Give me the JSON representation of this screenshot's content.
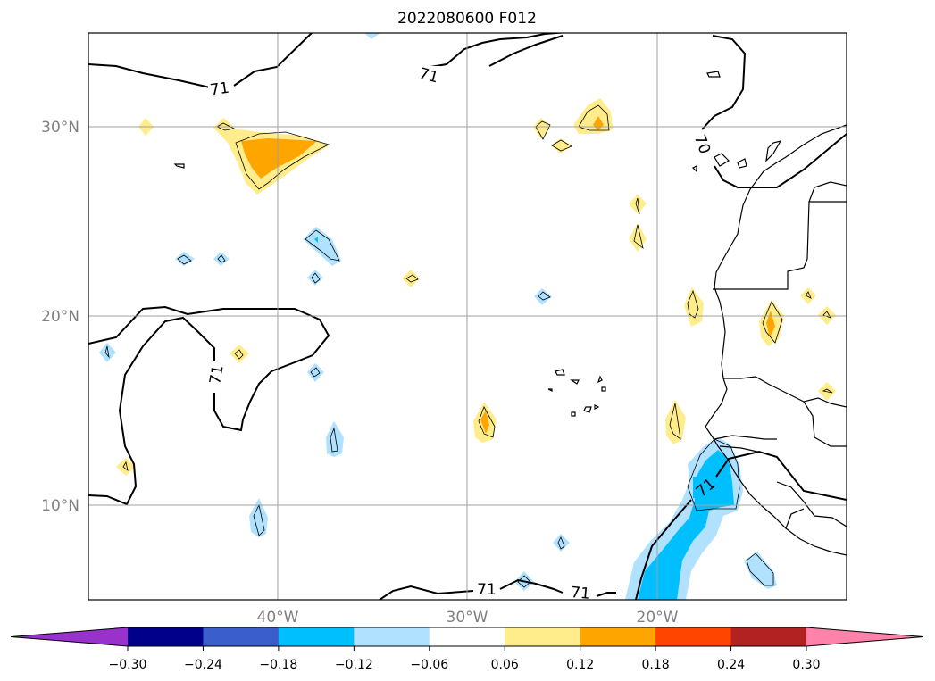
{
  "title": "2022080600 F012",
  "map": {
    "lat_ticks": [
      {
        "label": "30°N",
        "lat": 30
      },
      {
        "label": "20°N",
        "lat": 20
      },
      {
        "label": "10°N",
        "lat": 10
      }
    ],
    "lon_ticks": [
      {
        "label": "40°W",
        "lon": -40
      },
      {
        "label": "30°W",
        "lon": -30
      },
      {
        "label": "20°W",
        "lon": -20
      }
    ],
    "extent": {
      "lon_min": -50,
      "lon_max": -10,
      "lat_min": 5,
      "lat_max": 35
    },
    "contour_value_label": "71",
    "contour_label_70": "70"
  },
  "colorbar": {
    "extend": "both",
    "colors": [
      "#9932cc",
      "#00008b",
      "#3a5fcd",
      "#00bfff",
      "#b0e2ff",
      "#ffffff",
      "#ffec8b",
      "#ffa500",
      "#ff4500",
      "#b22222",
      "#ff82ab"
    ],
    "tick_labels": [
      "−0.30",
      "−0.24",
      "−0.18",
      "−0.12",
      "−0.06",
      "0.06",
      "0.12",
      "0.18",
      "0.24",
      "0.30"
    ]
  }
}
